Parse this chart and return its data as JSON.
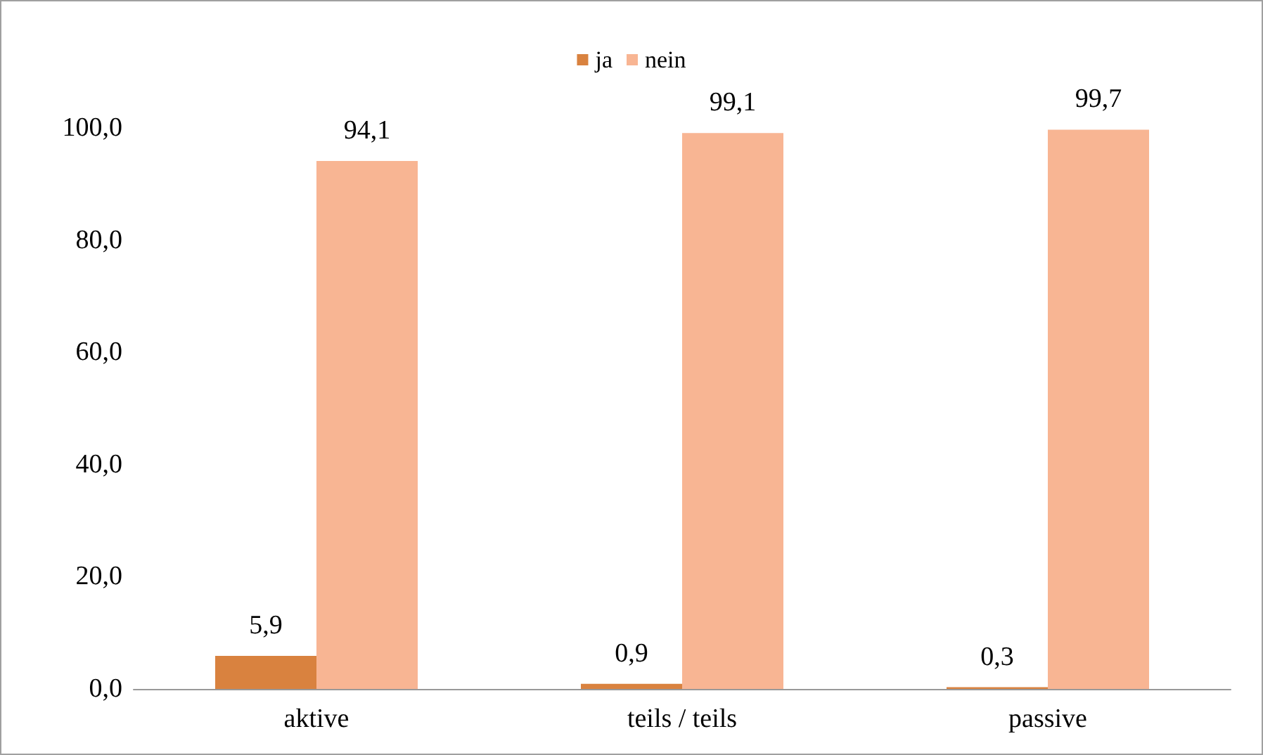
{
  "chart_data": {
    "type": "bar",
    "categories": [
      "aktive",
      "teils / teils",
      "passive"
    ],
    "series": [
      {
        "name": "ja",
        "color": "#d9823f",
        "values": [
          5.9,
          0.9,
          0.3
        ],
        "value_labels": [
          "5,9",
          "0,9",
          "0,3"
        ]
      },
      {
        "name": "nein",
        "color": "#f8b593",
        "values": [
          94.1,
          99.1,
          99.7
        ],
        "value_labels": [
          "94,1",
          "99,1",
          "99,7"
        ]
      }
    ],
    "ylim": [
      0,
      100
    ],
    "yticks": [
      {
        "value": 0,
        "label": "0,0"
      },
      {
        "value": 20,
        "label": "20,0"
      },
      {
        "value": 40,
        "label": "40,0"
      },
      {
        "value": 60,
        "label": "60,0"
      },
      {
        "value": 80,
        "label": "80,0"
      },
      {
        "value": 100,
        "label": "100,0"
      }
    ],
    "grid": false,
    "legend": "top"
  }
}
